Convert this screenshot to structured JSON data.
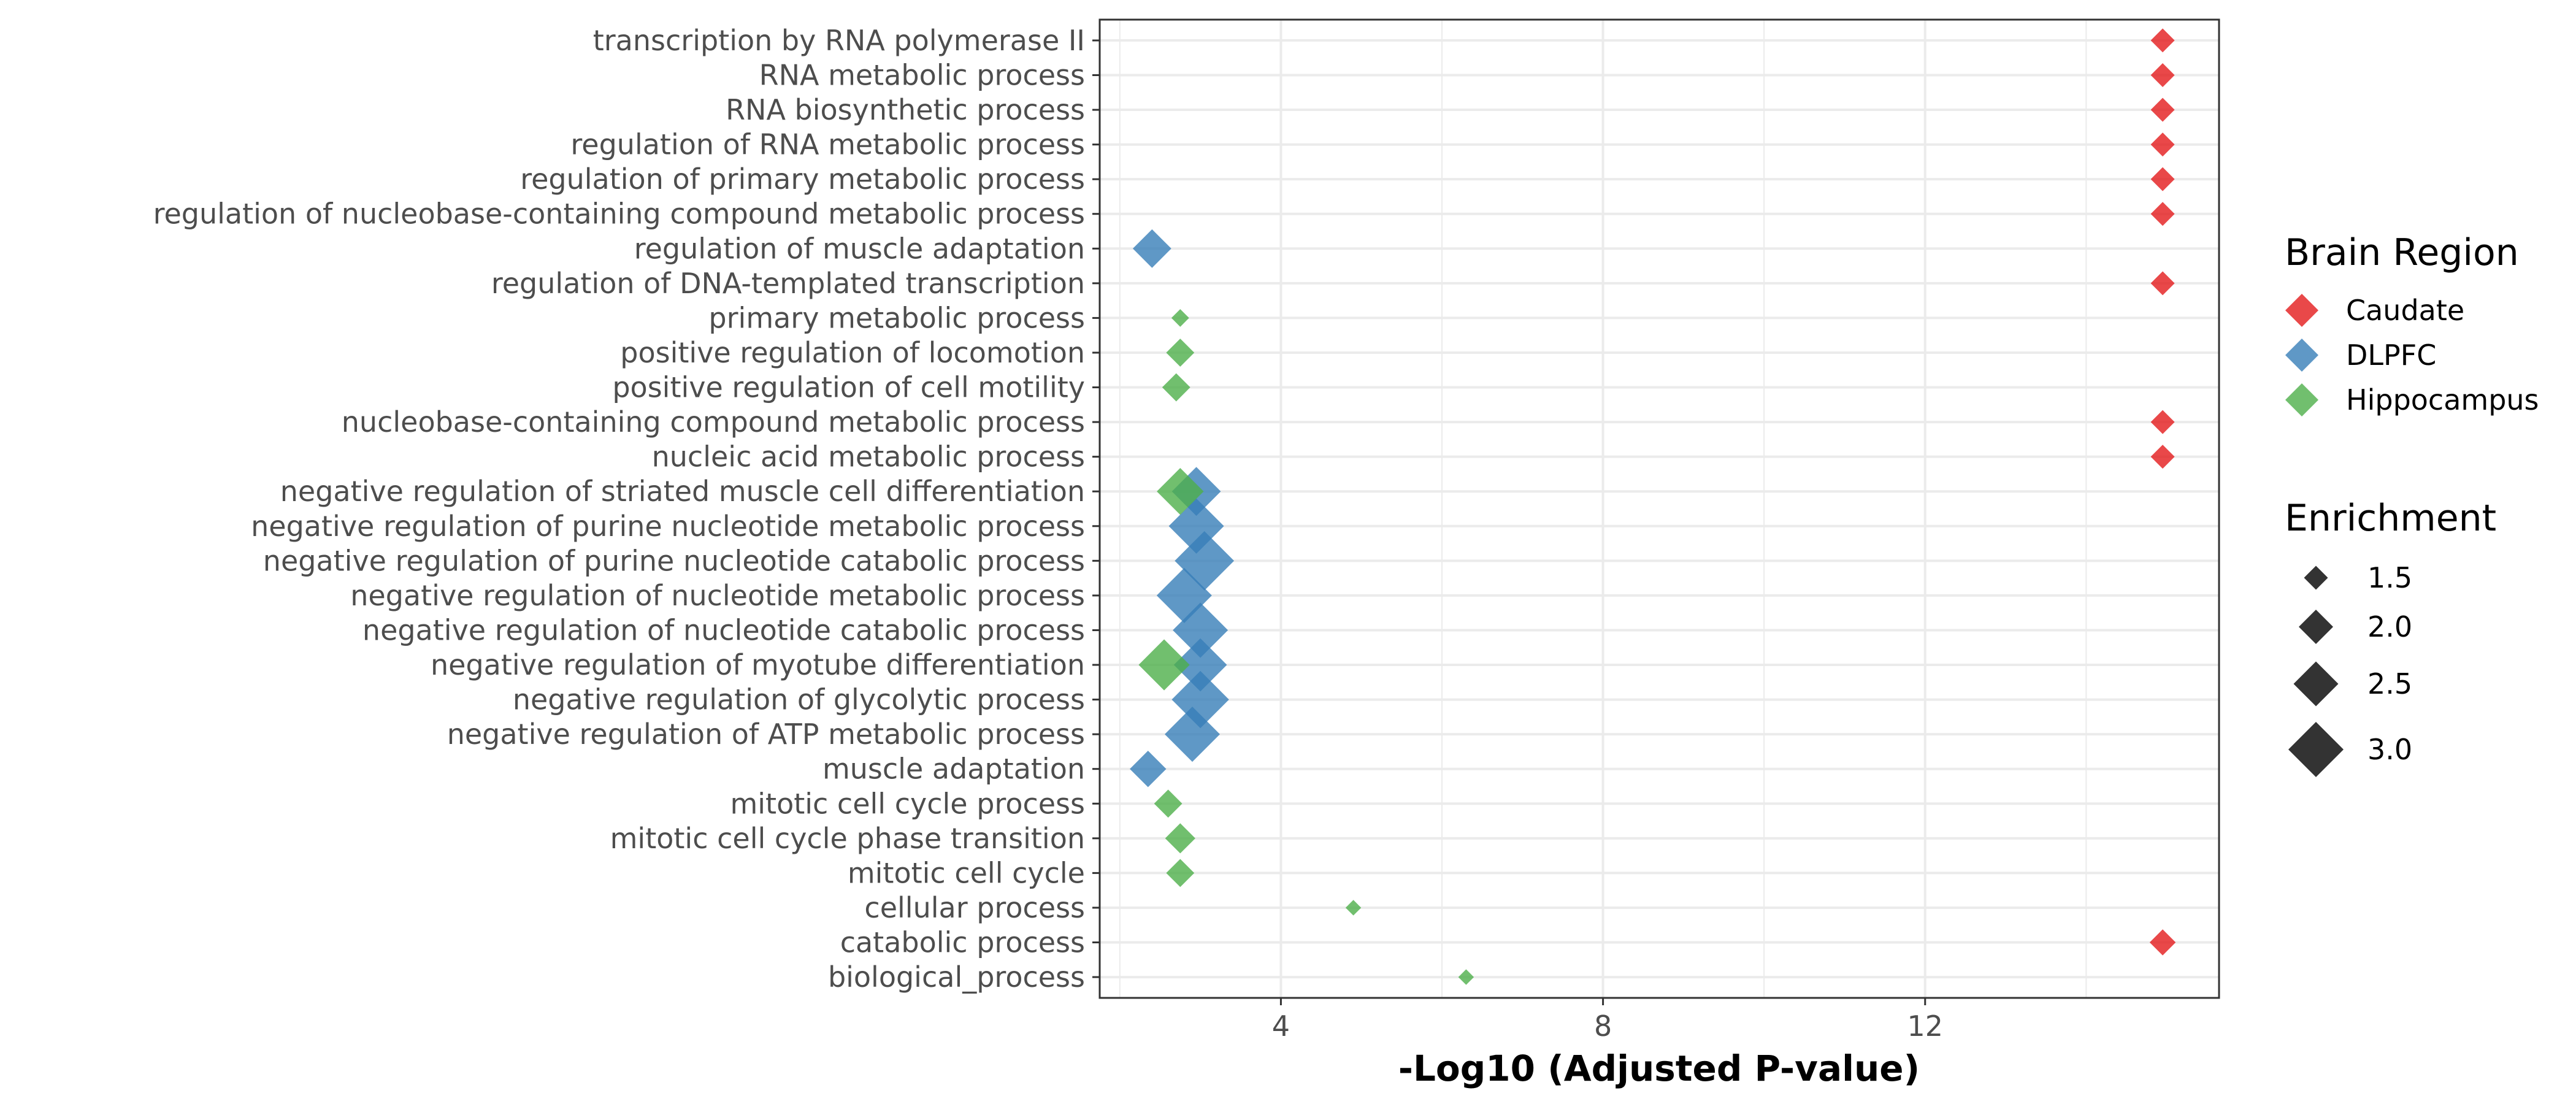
{
  "chart_data": {
    "type": "scatter",
    "title": "",
    "xlabel": "-Log10 (Adjusted P-value)",
    "ylabel": "",
    "xlim": [
      1.75,
      15.65
    ],
    "xticks": [
      4,
      8,
      12
    ],
    "grid": true,
    "legend_position": "right",
    "terms": [
      "transcription by RNA polymerase II",
      "RNA metabolic process",
      "RNA biosynthetic process",
      "regulation of RNA metabolic process",
      "regulation of primary metabolic process",
      "regulation of nucleobase-containing compound metabolic process",
      "regulation of muscle adaptation",
      "regulation of DNA-templated transcription",
      "primary metabolic process",
      "positive regulation of locomotion",
      "positive regulation of cell motility",
      "nucleobase-containing compound metabolic process",
      "nucleic acid metabolic process",
      "negative regulation of striated muscle cell differentiation",
      "negative regulation of purine nucleotide metabolic process",
      "negative regulation of purine nucleotide catabolic process",
      "negative regulation of nucleotide metabolic process",
      "negative regulation of nucleotide catabolic process",
      "negative regulation of myotube differentiation",
      "negative regulation of glycolytic process",
      "negative regulation of ATP metabolic process",
      "muscle adaptation",
      "mitotic cell cycle process",
      "mitotic cell cycle phase transition",
      "mitotic cell cycle",
      "cellular process",
      "catabolic process",
      "biological_process"
    ],
    "series": [
      {
        "name": "Caudate",
        "color": "#e41a1c",
        "points": [
          {
            "term": "transcription by RNA polymerase II",
            "x": 14.95,
            "enrichment": 1.5
          },
          {
            "term": "RNA metabolic process",
            "x": 14.95,
            "enrichment": 1.5
          },
          {
            "term": "RNA biosynthetic process",
            "x": 14.95,
            "enrichment": 1.5
          },
          {
            "term": "regulation of RNA metabolic process",
            "x": 14.95,
            "enrichment": 1.5
          },
          {
            "term": "regulation of primary metabolic process",
            "x": 14.95,
            "enrichment": 1.5
          },
          {
            "term": "regulation of nucleobase-containing compound metabolic process",
            "x": 14.95,
            "enrichment": 1.5
          },
          {
            "term": "regulation of DNA-templated transcription",
            "x": 14.95,
            "enrichment": 1.5
          },
          {
            "term": "nucleobase-containing compound metabolic process",
            "x": 14.95,
            "enrichment": 1.5
          },
          {
            "term": "nucleic acid metabolic process",
            "x": 14.95,
            "enrichment": 1.5
          },
          {
            "term": "catabolic process",
            "x": 14.95,
            "enrichment": 1.6
          }
        ]
      },
      {
        "name": "DLPFC",
        "color": "#377eb8",
        "points": [
          {
            "term": "regulation of muscle adaptation",
            "x": 2.4,
            "enrichment": 2.2
          },
          {
            "term": "negative regulation of striated muscle cell differentiation",
            "x": 2.95,
            "enrichment": 2.7
          },
          {
            "term": "negative regulation of purine nucleotide metabolic process",
            "x": 2.95,
            "enrichment": 3.0
          },
          {
            "term": "negative regulation of purine nucleotide catabolic process",
            "x": 3.05,
            "enrichment": 3.2
          },
          {
            "term": "negative regulation of nucleotide metabolic process",
            "x": 2.8,
            "enrichment": 3.0
          },
          {
            "term": "negative regulation of nucleotide catabolic process",
            "x": 3.0,
            "enrichment": 3.0
          },
          {
            "term": "negative regulation of myotube differentiation",
            "x": 3.0,
            "enrichment": 2.9
          },
          {
            "term": "negative regulation of glycolytic process",
            "x": 3.0,
            "enrichment": 3.1
          },
          {
            "term": "negative regulation of ATP metabolic process",
            "x": 2.9,
            "enrichment": 3.0
          },
          {
            "term": "muscle adaptation",
            "x": 2.35,
            "enrichment": 2.1
          }
        ]
      },
      {
        "name": "Hippocampus",
        "color": "#4daf4a",
        "points": [
          {
            "term": "primary metabolic process",
            "x": 2.75,
            "enrichment": 1.2
          },
          {
            "term": "positive regulation of locomotion",
            "x": 2.75,
            "enrichment": 1.7
          },
          {
            "term": "positive regulation of cell motility",
            "x": 2.7,
            "enrichment": 1.7
          },
          {
            "term": "negative regulation of striated muscle cell differentiation",
            "x": 2.75,
            "enrichment": 2.6
          },
          {
            "term": "negative regulation of myotube differentiation",
            "x": 2.55,
            "enrichment": 2.8
          },
          {
            "term": "mitotic cell cycle process",
            "x": 2.6,
            "enrichment": 1.7
          },
          {
            "term": "mitotic cell cycle phase transition",
            "x": 2.75,
            "enrichment": 1.8
          },
          {
            "term": "mitotic cell cycle",
            "x": 2.75,
            "enrichment": 1.7
          },
          {
            "term": "cellular process",
            "x": 4.9,
            "enrichment": 1.1
          },
          {
            "term": "biological_process",
            "x": 6.3,
            "enrichment": 1.1
          }
        ]
      }
    ],
    "legend_color": {
      "title": "Brain Region",
      "entries": [
        "Caudate",
        "DLPFC",
        "Hippocampus"
      ]
    },
    "legend_size": {
      "title": "Enrichment",
      "entries": [
        {
          "label": "1.5",
          "value": 1.5
        },
        {
          "label": "2.0",
          "value": 2.0
        },
        {
          "label": "2.5",
          "value": 2.5
        },
        {
          "label": "3.0",
          "value": 3.0
        }
      ],
      "color": "#333333"
    }
  }
}
